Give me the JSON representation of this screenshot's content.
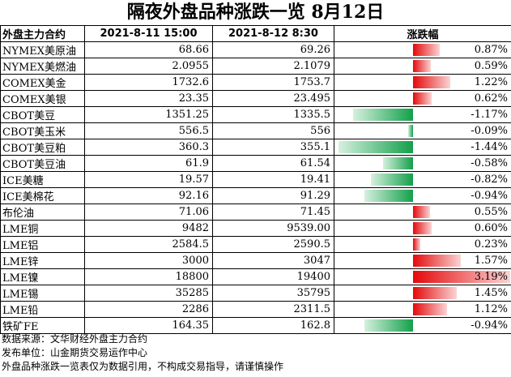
{
  "title": "隔夜外盘品种涨跌一览 8月12日",
  "headers": {
    "name": "外盘主力合约",
    "prev": "2021-8-11 15:00",
    "curr": "2021-8-12 8:30",
    "change": "涨跌幅"
  },
  "colors": {
    "up": "#e4090b",
    "down": "#12a04a"
  },
  "rows": [
    {
      "name": "NYMEX美原油",
      "prev": "68.66",
      "curr": "69.26",
      "change": "0.87%",
      "value": 0.87
    },
    {
      "name": "NYMEX美燃油",
      "prev": "2.0955",
      "curr": "2.1079",
      "change": "0.59%",
      "value": 0.59
    },
    {
      "name": "COMEX美金",
      "prev": "1732.6",
      "curr": "1753.7",
      "change": "1.22%",
      "value": 1.22
    },
    {
      "name": "COMEX美银",
      "prev": "23.35",
      "curr": "23.495",
      "change": "0.62%",
      "value": 0.62
    },
    {
      "name": "CBOT美豆",
      "prev": "1351.25",
      "curr": "1335.5",
      "change": "-1.17%",
      "value": -1.17
    },
    {
      "name": "CBOT美玉米",
      "prev": "556.5",
      "curr": "556",
      "change": "-0.09%",
      "value": -0.09
    },
    {
      "name": "CBOT美豆粕",
      "prev": "360.3",
      "curr": "355.1",
      "change": "-1.44%",
      "value": -1.44
    },
    {
      "name": "CBOT美豆油",
      "prev": "61.9",
      "curr": "61.54",
      "change": "-0.58%",
      "value": -0.58
    },
    {
      "name": "ICE美糖",
      "prev": "19.57",
      "curr": "19.41",
      "change": "-0.82%",
      "value": -0.82
    },
    {
      "name": "ICE美棉花",
      "prev": "92.16",
      "curr": "91.29",
      "change": "-0.94%",
      "value": -0.94
    },
    {
      "name": "布伦油",
      "prev": "71.06",
      "curr": "71.45",
      "change": "0.55%",
      "value": 0.55
    },
    {
      "name": "LME铜",
      "prev": "9482",
      "curr": "9539.00",
      "change": "0.60%",
      "value": 0.6
    },
    {
      "name": "LME铝",
      "prev": "2584.5",
      "curr": "2590.5",
      "change": "0.23%",
      "value": 0.23
    },
    {
      "name": "LME锌",
      "prev": "3000",
      "curr": "3047",
      "change": "1.57%",
      "value": 1.57
    },
    {
      "name": "LME镍",
      "prev": "18800",
      "curr": "19400",
      "change": "3.19%",
      "value": 3.19
    },
    {
      "name": "LME锡",
      "prev": "35285",
      "curr": "35795",
      "change": "1.45%",
      "value": 1.45
    },
    {
      "name": "LME铅",
      "prev": "2286",
      "curr": "2311.5",
      "change": "1.12%",
      "value": 1.12
    },
    {
      "name": "铁矿FE",
      "prev": "164.35",
      "curr": "162.8",
      "change": "-0.94%",
      "value": -0.94
    }
  ],
  "footer": {
    "source": "数据来源：文华财经外盘主力合约",
    "publisher": "发布单位：山金期货交易运作中心",
    "disclaimer": "外盘品种涨跌一览表仅为数据引用，不构成交易指导，请谨慎操作"
  }
}
